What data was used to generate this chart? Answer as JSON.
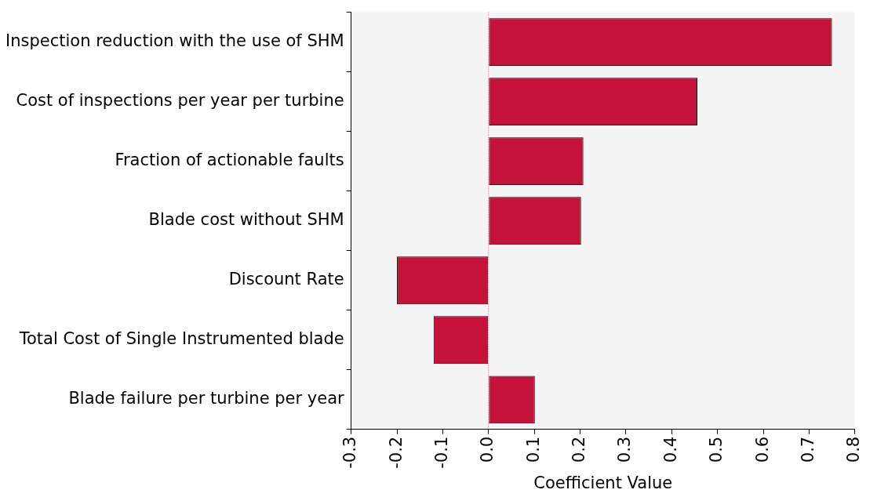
{
  "chart_data": {
    "type": "bar",
    "orientation": "horizontal",
    "xlabel": "Coefficient Value",
    "categories": [
      "Inspection reduction with the use of SHM",
      "Cost of inspections per year per turbine",
      "Fraction of actionable faults",
      "Blade cost without SHM",
      "Discount Rate",
      "Total Cost of Single Instrumented blade",
      "Blade failure per turbine per year"
    ],
    "values": [
      0.75,
      0.456,
      0.207,
      0.202,
      -0.2,
      -0.12,
      0.101
    ],
    "color": "#c4123a",
    "xlim": [
      -0.3,
      0.8
    ],
    "xticks": [
      -0.3,
      -0.2,
      -0.1,
      {
        "value": 0,
        "label": "0.0"
      },
      0.1,
      0.2,
      0.3,
      0.4,
      0.5,
      0.6,
      0.7,
      0.8
    ],
    "ref_lines": [
      {
        "axis": "x",
        "value": 0,
        "color": "#e0407a",
        "line_style": "dotted"
      }
    ],
    "grid": false,
    "legend": false
  }
}
